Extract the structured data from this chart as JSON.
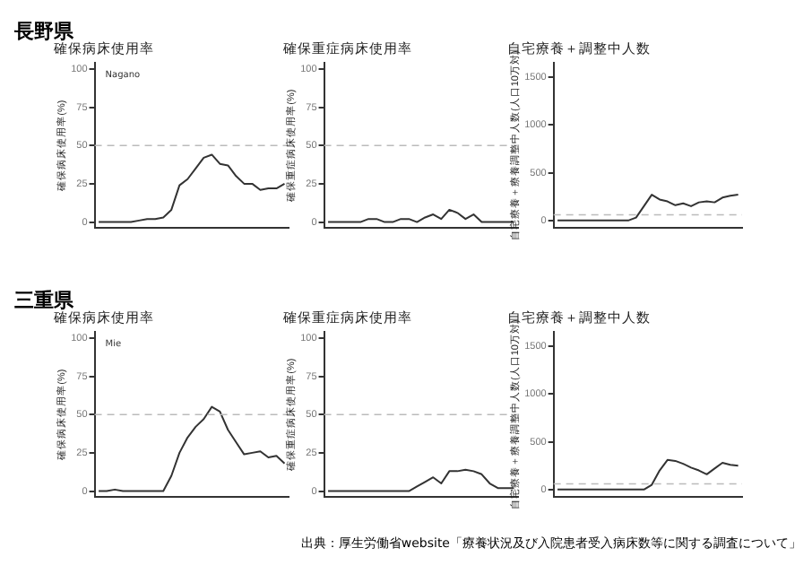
{
  "chart_data": [
    {
      "type": "line",
      "title": "確保病床使用率",
      "ylabel": "確保病床使用率(%)",
      "annotations": [
        "長野県",
        "Nagano"
      ],
      "categories": [
        null,
        null,
        null,
        null,
        null,
        null,
        null,
        null,
        null,
        null,
        null,
        null,
        null,
        null,
        null,
        null,
        null,
        null,
        null,
        null,
        null,
        null,
        null,
        null
      ],
      "series": [
        {
          "color": "#333333",
          "values": [
            0,
            0,
            0,
            0,
            0,
            1,
            2,
            2,
            3,
            8,
            24,
            28,
            35,
            42,
            44,
            38,
            37,
            30,
            25,
            25,
            21,
            22,
            22,
            25
          ]
        }
      ],
      "ylim": [
        -4,
        104
      ],
      "yticks": [
        0,
        25,
        50,
        75,
        100
      ],
      "ref_lines": [
        {
          "axis": "y",
          "value": 50,
          "color": "#bbbbbb",
          "line_style": "dashed"
        }
      ],
      "grid": false,
      "marker": "none"
    },
    {
      "type": "line",
      "title": "確保重症病床使用率",
      "ylabel": "確保重症病床使用率(%)",
      "categories": [
        null,
        null,
        null,
        null,
        null,
        null,
        null,
        null,
        null,
        null,
        null,
        null,
        null,
        null,
        null,
        null,
        null,
        null,
        null,
        null,
        null,
        null,
        null,
        null
      ],
      "series": [
        {
          "color": "#333333",
          "values": [
            0,
            0,
            0,
            0,
            0,
            2,
            2,
            0,
            0,
            2,
            2,
            0,
            3,
            5,
            2,
            8,
            6,
            2,
            5,
            0,
            0,
            0,
            0,
            0
          ]
        }
      ],
      "ylim": [
        -4,
        104
      ],
      "yticks": [
        0,
        25,
        50,
        75,
        100
      ],
      "ref_lines": [
        {
          "axis": "y",
          "value": 50,
          "color": "#bbbbbb",
          "line_style": "dashed"
        }
      ],
      "grid": false,
      "marker": "none"
    },
    {
      "type": "line",
      "title": "自宅療養＋調整中人数",
      "ylabel": "自宅療養＋療養調整中人数(人口10万対)",
      "categories": [
        null,
        null,
        null,
        null,
        null,
        null,
        null,
        null,
        null,
        null,
        null,
        null,
        null,
        null,
        null,
        null,
        null,
        null,
        null,
        null,
        null,
        null,
        null,
        null
      ],
      "series": [
        {
          "color": "#333333",
          "values": [
            0,
            0,
            0,
            0,
            0,
            0,
            0,
            0,
            0,
            0,
            30,
            150,
            270,
            220,
            200,
            160,
            180,
            150,
            190,
            200,
            190,
            240,
            260,
            270
          ]
        }
      ],
      "ylim": [
        -80,
        1650
      ],
      "yticks": [
        0,
        500,
        1000,
        1500
      ],
      "ref_lines": [
        {
          "axis": "y",
          "value": 60,
          "color": "#bbbbbb",
          "line_style": "dashed"
        }
      ],
      "grid": false,
      "marker": "none"
    },
    {
      "type": "line",
      "title": "確保病床使用率",
      "ylabel": "確保病床使用率(%)",
      "annotations": [
        "三重県",
        "Mie"
      ],
      "categories": [
        null,
        null,
        null,
        null,
        null,
        null,
        null,
        null,
        null,
        null,
        null,
        null,
        null,
        null,
        null,
        null,
        null,
        null,
        null,
        null,
        null,
        null,
        null,
        null
      ],
      "series": [
        {
          "color": "#333333",
          "values": [
            0,
            0,
            1,
            0,
            0,
            0,
            0,
            0,
            0,
            10,
            25,
            35,
            42,
            47,
            55,
            52,
            40,
            32,
            24,
            25,
            26,
            22,
            23,
            18
          ]
        }
      ],
      "ylim": [
        -4,
        104
      ],
      "yticks": [
        0,
        25,
        50,
        75,
        100
      ],
      "ref_lines": [
        {
          "axis": "y",
          "value": 50,
          "color": "#bbbbbb",
          "line_style": "dashed"
        }
      ],
      "grid": false,
      "marker": "none"
    },
    {
      "type": "line",
      "title": "確保重症病床使用率",
      "ylabel": "確保重症病床使用率(%)",
      "categories": [
        null,
        null,
        null,
        null,
        null,
        null,
        null,
        null,
        null,
        null,
        null,
        null,
        null,
        null,
        null,
        null,
        null,
        null,
        null,
        null,
        null,
        null,
        null,
        null
      ],
      "series": [
        {
          "color": "#333333",
          "values": [
            0,
            0,
            0,
            0,
            0,
            0,
            0,
            0,
            0,
            0,
            0,
            3,
            6,
            9,
            5,
            13,
            13,
            14,
            13,
            11,
            5,
            2,
            2,
            2
          ]
        }
      ],
      "ylim": [
        -4,
        104
      ],
      "yticks": [
        0,
        25,
        50,
        75,
        100
      ],
      "ref_lines": [
        {
          "axis": "y",
          "value": 50,
          "color": "#bbbbbb",
          "line_style": "dashed"
        }
      ],
      "grid": false,
      "marker": "none"
    },
    {
      "type": "line",
      "title": "自宅療養＋調整中人数",
      "ylabel": "自宅療養＋療養調整中人数(人口10万対)",
      "annotations": [
        "出典：厚生労働省website「療養状況及び入院患者受入病床数等に関する調査について」"
      ],
      "categories": [
        null,
        null,
        null,
        null,
        null,
        null,
        null,
        null,
        null,
        null,
        null,
        null,
        null,
        null,
        null,
        null,
        null,
        null,
        null,
        null,
        null,
        null,
        null,
        null
      ],
      "series": [
        {
          "color": "#333333",
          "values": [
            0,
            0,
            0,
            0,
            0,
            0,
            0,
            0,
            0,
            0,
            0,
            0,
            50,
            200,
            310,
            300,
            270,
            230,
            200,
            160,
            220,
            280,
            260,
            250
          ]
        }
      ],
      "ylim": [
        -80,
        1650
      ],
      "yticks": [
        0,
        500,
        1000,
        1500
      ],
      "ref_lines": [
        {
          "axis": "y",
          "value": 60,
          "color": "#bbbbbb",
          "line_style": "dashed"
        }
      ],
      "grid": false,
      "marker": "none"
    }
  ]
}
